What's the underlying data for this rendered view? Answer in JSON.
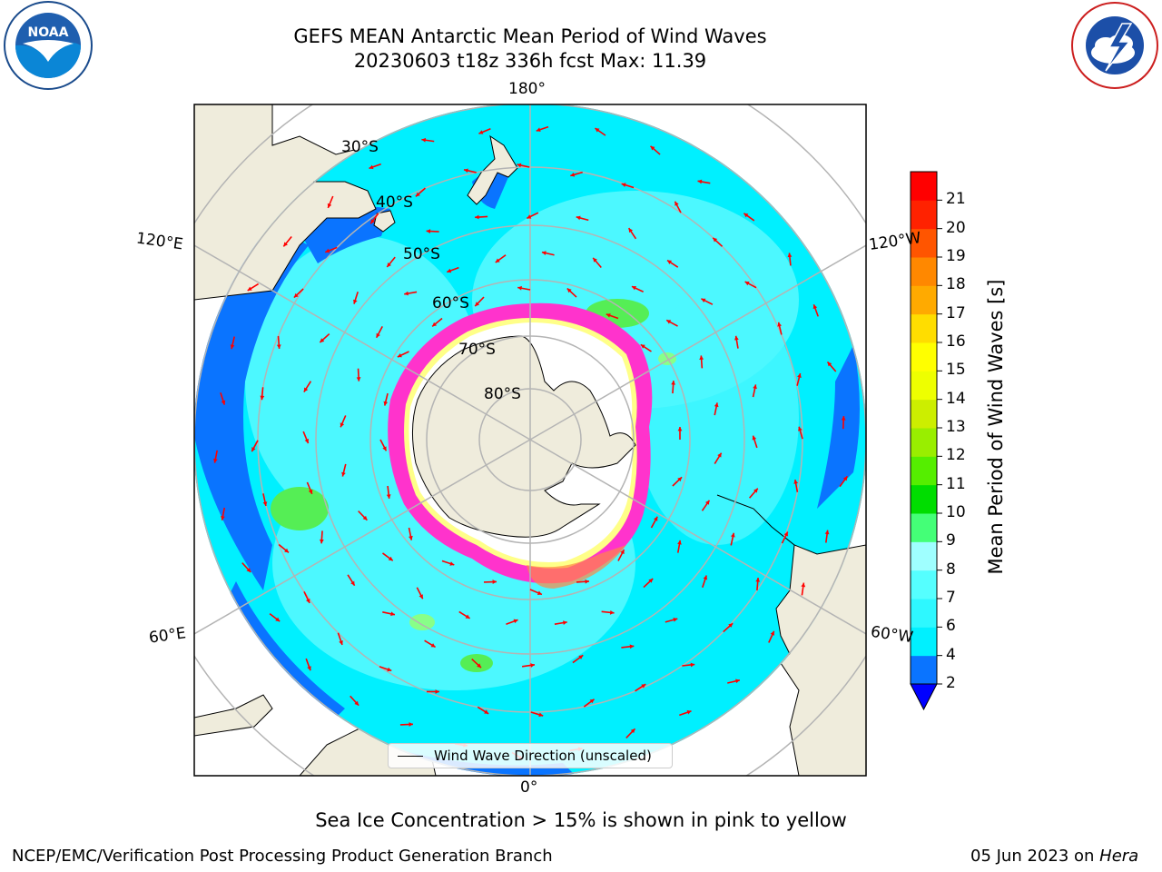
{
  "title": {
    "line1": "GEFS MEAN Antarctic Mean Period of Wind Waves",
    "line2": "20230603 t18z 336h fcst   Max: 11.39"
  },
  "map": {
    "projection": "south-polar-stereographic",
    "longitude_labels": {
      "top": "180°",
      "left_upper": "120°E",
      "right_upper": "120°W",
      "left_lower": "60°E",
      "right_lower": "60°W",
      "bottom": "0°"
    },
    "latitude_labels": [
      "30°S",
      "40°S",
      "50°S",
      "60°S",
      "70°S",
      "80°S"
    ],
    "legend_label": "Wind Wave Direction (unscaled)",
    "colors": {
      "land": "#efecdc",
      "ocean_4_6": "#00f0ff",
      "ocean_6_8": "#4cf8ff",
      "ocean_2_4": "#0a74ff",
      "wave_8_10": "#66ff66",
      "sea_ice": "#ff33cc",
      "arrow": "#ff0000",
      "grid": "#b4b4b4"
    }
  },
  "colorbar": {
    "label": "Mean Period of Wind Waves [s]",
    "ticks": [
      "2",
      "4",
      "6",
      "7",
      "8",
      "9",
      "10",
      "11",
      "12",
      "13",
      "14",
      "15",
      "16",
      "17",
      "18",
      "19",
      "20",
      "21"
    ],
    "colors": [
      "#0a74ff",
      "#00f0ff",
      "#2ef8ff",
      "#55ffff",
      "#9fffff",
      "#44ff77",
      "#00dd00",
      "#55ee00",
      "#99ee00",
      "#ccee00",
      "#eeff00",
      "#ffff00",
      "#ffdd00",
      "#ffaa00",
      "#ff8800",
      "#ff5500",
      "#ff2200",
      "#ff0000"
    ],
    "under_color": "#0000ff"
  },
  "caption": "Sea Ice Concentration > 15% is shown in pink to yellow",
  "footer": {
    "left": "NCEP/EMC/Verification Post Processing Product Generation Branch",
    "right_date": "05 Jun 2023 on ",
    "right_machine": "Hera"
  },
  "logos": {
    "left": "NOAA",
    "right": "NATIONAL WEATHER SERVICE"
  }
}
